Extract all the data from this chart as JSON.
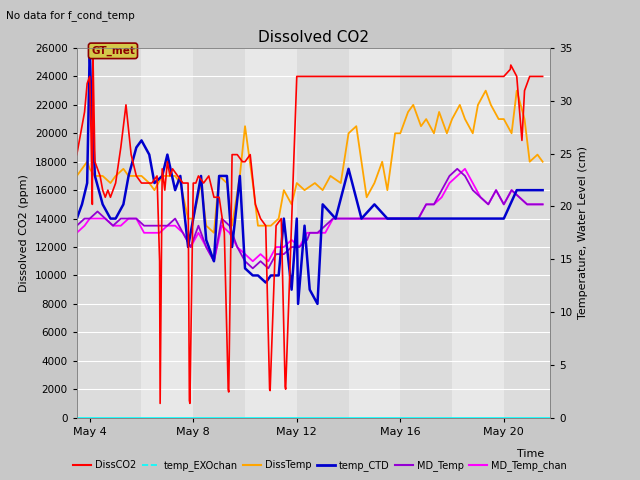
{
  "title": "Dissolved CO2",
  "top_left_text": "No data for f_cond_temp",
  "xlabel": "Time",
  "ylabel_left": "Dissolved CO2 (ppm)",
  "ylabel_right": "Temperature, Water Level (cm)",
  "ylim_left": [
    0,
    26000
  ],
  "ylim_right": [
    0,
    35
  ],
  "fig_bg_color": "#c8c8c8",
  "plot_bg_color": "#e0e0e0",
  "annotation_text": "GT_met",
  "legend_entries": [
    "DissCO2",
    "temp_EXOchan",
    "DissTemp",
    "temp_CTD",
    "MD_Temp",
    "MD_Temp_chan"
  ],
  "legend_colors": [
    "#ff0000",
    "#00ffff",
    "#ffa500",
    "#0000cd",
    "#9400d3",
    "#ff00ff"
  ],
  "legend_lw": [
    1.5,
    1.2,
    1.5,
    2.0,
    1.5,
    1.5
  ],
  "xtick_positions": [
    4,
    8,
    12,
    16,
    20
  ],
  "xtick_labels": [
    "May 4",
    "May 8",
    "May 12",
    "May 16",
    "May 20"
  ],
  "xlim": [
    3.5,
    21.8
  ],
  "ytick_left": [
    0,
    2000,
    4000,
    6000,
    8000,
    10000,
    12000,
    14000,
    16000,
    18000,
    20000,
    22000,
    24000,
    26000
  ],
  "ytick_right": [
    0,
    5,
    10,
    15,
    20,
    25,
    30,
    35
  ],
  "band_edges": [
    3.5,
    6,
    8,
    10,
    12,
    14,
    16,
    18,
    20,
    21.8
  ],
  "band_colors": [
    "#dcdcdc",
    "#e8e8e8",
    "#dcdcdc",
    "#e8e8e8",
    "#dcdcdc",
    "#e8e8e8",
    "#dcdcdc",
    "#e8e8e8",
    "#dcdcdc"
  ],
  "series": {
    "DissCO2": {
      "color": "#ff0000",
      "lw": 1.2,
      "x": [
        3.5,
        3.6,
        3.7,
        3.8,
        3.9,
        4.0,
        4.05,
        4.1,
        4.12,
        4.15,
        4.2,
        4.3,
        4.4,
        4.5,
        4.6,
        4.7,
        4.8,
        5.0,
        5.2,
        5.4,
        5.6,
        5.8,
        6.0,
        6.2,
        6.4,
        6.6,
        6.7,
        6.72,
        6.8,
        6.9,
        7.0,
        7.1,
        7.2,
        7.4,
        7.6,
        7.8,
        7.85,
        7.87,
        8.0,
        8.1,
        8.2,
        8.4,
        8.6,
        8.8,
        9.0,
        9.2,
        9.35,
        9.37,
        9.5,
        9.7,
        9.9,
        10.0,
        10.2,
        10.4,
        10.6,
        10.8,
        10.95,
        10.97,
        11.2,
        11.4,
        11.55,
        11.57,
        12.0,
        12.1,
        12.15,
        12.2,
        12.5,
        13.0,
        14.0,
        15.0,
        16.0,
        17.0,
        17.5,
        18.0,
        18.5,
        19.0,
        19.5,
        20.0,
        20.25,
        20.27,
        20.5,
        20.7,
        20.8,
        21.0,
        21.2,
        21.5
      ],
      "y": [
        18500,
        19500,
        20500,
        21500,
        23500,
        24000,
        20000,
        15000,
        26000,
        23000,
        18000,
        17500,
        17000,
        16000,
        15500,
        16000,
        15500,
        16500,
        19000,
        22000,
        18500,
        17000,
        16500,
        16500,
        16500,
        17000,
        11000,
        1000,
        17500,
        16000,
        18000,
        17000,
        17500,
        17000,
        16500,
        16500,
        1200,
        1000,
        16500,
        16500,
        17000,
        16500,
        17000,
        15500,
        15500,
        13000,
        2000,
        1800,
        18500,
        18500,
        18000,
        18000,
        18500,
        15000,
        14000,
        13500,
        2000,
        1900,
        13500,
        14000,
        2200,
        2000,
        24000,
        24000,
        24000,
        24000,
        24000,
        24000,
        24000,
        24000,
        24000,
        24000,
        24000,
        24000,
        24000,
        24000,
        24000,
        24000,
        24500,
        24800,
        24000,
        19500,
        23000,
        24000,
        24000,
        24000
      ]
    },
    "temp_EXOchan": {
      "color": "#00ffff",
      "lw": 1.2,
      "x": [
        3.5,
        21.8
      ],
      "y": [
        0,
        0
      ]
    },
    "DissTemp": {
      "color": "#ffa500",
      "lw": 1.3,
      "x": [
        3.5,
        3.7,
        3.9,
        4.0,
        4.2,
        4.5,
        4.8,
        5.0,
        5.3,
        5.5,
        5.8,
        6.0,
        6.3,
        6.5,
        6.8,
        7.0,
        7.3,
        7.5,
        7.8,
        8.0,
        8.3,
        8.5,
        8.8,
        9.0,
        9.3,
        9.5,
        9.8,
        10.0,
        10.3,
        10.5,
        10.8,
        11.0,
        11.3,
        11.5,
        11.8,
        12.0,
        12.3,
        12.7,
        13.0,
        13.3,
        13.7,
        14.0,
        14.3,
        14.7,
        15.0,
        15.3,
        15.5,
        15.8,
        16.0,
        16.3,
        16.5,
        16.8,
        17.0,
        17.3,
        17.5,
        17.8,
        18.0,
        18.3,
        18.5,
        18.8,
        19.0,
        19.3,
        19.5,
        19.8,
        20.0,
        20.3,
        20.5,
        20.8,
        21.0,
        21.3,
        21.5
      ],
      "y": [
        17000,
        17500,
        18000,
        17500,
        17000,
        17000,
        16500,
        17000,
        17500,
        17000,
        17000,
        17000,
        16500,
        16000,
        17000,
        17000,
        17000,
        16500,
        14000,
        14000,
        16500,
        13500,
        13000,
        17000,
        16500,
        13500,
        17000,
        20500,
        16500,
        13500,
        13500,
        13500,
        14000,
        16000,
        15000,
        16500,
        16000,
        16500,
        16000,
        17000,
        16500,
        20000,
        20500,
        15500,
        16500,
        18000,
        16000,
        20000,
        20000,
        21500,
        22000,
        20500,
        21000,
        20000,
        21500,
        20000,
        21000,
        22000,
        21000,
        20000,
        22000,
        23000,
        22000,
        21000,
        21000,
        20000,
        23000,
        21000,
        18000,
        18500,
        18000
      ]
    },
    "temp_CTD": {
      "color": "#0000cd",
      "lw": 1.8,
      "x": [
        3.5,
        3.7,
        3.9,
        4.0,
        4.05,
        4.2,
        4.5,
        4.8,
        5.0,
        5.3,
        5.5,
        5.8,
        6.0,
        6.3,
        6.5,
        6.8,
        7.0,
        7.3,
        7.5,
        7.8,
        8.0,
        8.3,
        8.5,
        8.8,
        9.0,
        9.3,
        9.5,
        9.8,
        10.0,
        10.3,
        10.5,
        10.8,
        11.0,
        11.3,
        11.5,
        11.8,
        12.0,
        12.05,
        12.3,
        12.5,
        12.8,
        13.0,
        13.5,
        14.0,
        14.5,
        15.0,
        15.5,
        16.0,
        16.5,
        17.0,
        17.2,
        17.5,
        18.0,
        18.5,
        19.0,
        19.5,
        20.0,
        20.5,
        21.0,
        21.5
      ],
      "y": [
        14000,
        15000,
        16500,
        26000,
        23000,
        17000,
        15000,
        14000,
        14000,
        15000,
        17000,
        19000,
        19500,
        18500,
        16500,
        17000,
        18500,
        16000,
        17000,
        12000,
        14000,
        17000,
        12500,
        11000,
        17000,
        17000,
        12000,
        17000,
        10500,
        10000,
        10000,
        9500,
        10000,
        10000,
        14000,
        9000,
        14000,
        8000,
        13500,
        9000,
        8000,
        15000,
        14000,
        17500,
        14000,
        15000,
        14000,
        14000,
        14000,
        14000,
        14000,
        14000,
        14000,
        14000,
        14000,
        14000,
        14000,
        16000,
        16000,
        16000
      ]
    },
    "MD_Temp": {
      "color": "#9400d3",
      "lw": 1.3,
      "x": [
        3.5,
        3.8,
        4.0,
        4.3,
        4.6,
        4.9,
        5.2,
        5.5,
        5.8,
        6.1,
        6.4,
        6.7,
        7.0,
        7.3,
        7.6,
        7.9,
        8.2,
        8.5,
        8.8,
        9.1,
        9.4,
        9.7,
        10.0,
        10.3,
        10.6,
        10.9,
        11.2,
        11.5,
        11.8,
        12.1,
        12.4,
        12.5,
        12.8,
        13.1,
        13.4,
        13.7,
        14.0,
        14.3,
        14.6,
        14.9,
        15.2,
        15.5,
        15.8,
        16.1,
        16.4,
        16.7,
        17.0,
        17.3,
        17.6,
        17.9,
        18.2,
        18.5,
        18.8,
        19.1,
        19.4,
        19.7,
        20.0,
        20.3,
        20.6,
        20.9,
        21.2,
        21.5
      ],
      "y": [
        13500,
        14000,
        14000,
        14500,
        14000,
        13500,
        14000,
        14000,
        14000,
        13500,
        13500,
        13500,
        13500,
        14000,
        13000,
        12000,
        13500,
        12000,
        11000,
        14000,
        13500,
        12000,
        11000,
        10500,
        11000,
        10500,
        11500,
        11500,
        12000,
        12000,
        12500,
        13000,
        13000,
        13500,
        14000,
        14000,
        14000,
        14000,
        14000,
        14000,
        14000,
        14000,
        14000,
        14000,
        14000,
        14000,
        15000,
        15000,
        16000,
        17000,
        17500,
        17000,
        16000,
        15500,
        15000,
        16000,
        15000,
        16000,
        15500,
        15000,
        15000,
        15000
      ]
    },
    "MD_Temp_chan": {
      "color": "#ff00ff",
      "lw": 1.3,
      "x": [
        3.5,
        3.8,
        4.0,
        4.3,
        4.6,
        4.9,
        5.2,
        5.5,
        5.8,
        6.1,
        6.4,
        6.7,
        7.0,
        7.3,
        7.6,
        7.9,
        8.2,
        8.5,
        8.8,
        9.1,
        9.4,
        9.7,
        10.0,
        10.3,
        10.6,
        10.9,
        11.2,
        11.5,
        11.8,
        12.1,
        12.4,
        12.5,
        12.8,
        13.1,
        13.4,
        13.7,
        14.0,
        14.3,
        14.6,
        14.9,
        15.2,
        15.5,
        15.8,
        16.1,
        16.4,
        16.7,
        17.0,
        17.3,
        17.6,
        17.9,
        18.2,
        18.5,
        18.8,
        19.1,
        19.4,
        19.7,
        20.0,
        20.3,
        20.6,
        20.9,
        21.2,
        21.5
      ],
      "y": [
        13000,
        13500,
        14000,
        14000,
        14000,
        13500,
        13500,
        14000,
        14000,
        13000,
        13000,
        13000,
        13500,
        13500,
        13000,
        12000,
        13000,
        12000,
        11000,
        13500,
        13000,
        12000,
        11500,
        11000,
        11500,
        11000,
        12000,
        12000,
        12500,
        12000,
        13000,
        13000,
        13000,
        13000,
        14000,
        14000,
        14000,
        14000,
        14000,
        14000,
        14000,
        14000,
        14000,
        14000,
        14000,
        14000,
        15000,
        15000,
        15500,
        16500,
        17000,
        17500,
        16500,
        15500,
        15000,
        16000,
        15000,
        16000,
        15500,
        15000,
        15000,
        15000
      ]
    }
  }
}
